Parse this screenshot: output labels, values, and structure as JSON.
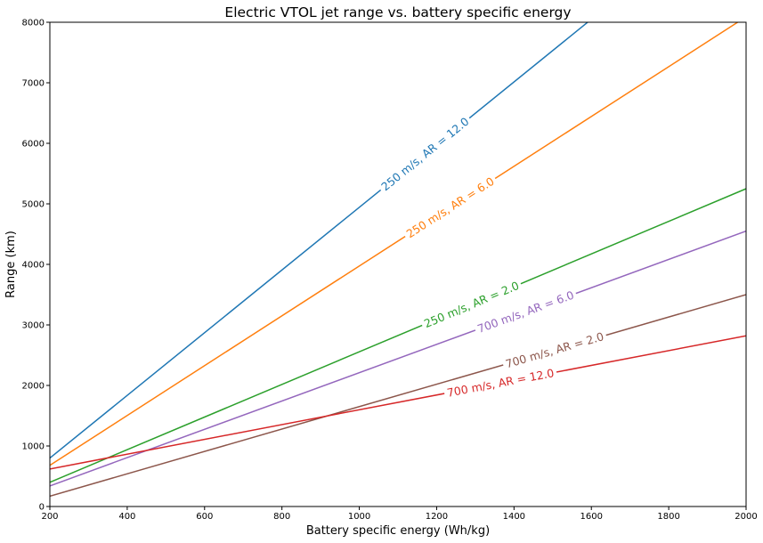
{
  "chart_data": {
    "type": "line",
    "title": "Electric VTOL jet range vs. battery specific energy",
    "xlabel": "Battery specific energy (Wh/kg)",
    "ylabel": "Range (km)",
    "xlim": [
      200,
      2000
    ],
    "ylim": [
      0,
      8000
    ],
    "xticks": [
      "200",
      "400",
      "600",
      "800",
      "1000",
      "1200",
      "1400",
      "1600",
      "1800",
      "2000"
    ],
    "yticks": [
      "0",
      "1000",
      "2000",
      "3000",
      "4000",
      "5000",
      "6000",
      "7000",
      "8000"
    ],
    "grid": false,
    "legend": "none",
    "series": [
      {
        "name": "250 m/s, AR = 12.0",
        "color": "#1f77b4",
        "x": [
          200,
          1600
        ],
        "y": [
          800,
          8050
        ],
        "label_x": 1170,
        "label_y": 6000
      },
      {
        "name": "250 m/s, AR = 6.0",
        "color": "#ff7f0e",
        "x": [
          200,
          2000
        ],
        "y": [
          680,
          8090
        ],
        "label_x": 1235,
        "label_y": 4950
      },
      {
        "name": "250 m/s, AR = 2.0",
        "color": "#2ca02c",
        "x": [
          200,
          2000
        ],
        "y": [
          400,
          5250
        ],
        "label_x": 1290,
        "label_y": 3380
      },
      {
        "name": "700 m/s, AR = 6.0",
        "color": "#9467bd",
        "x": [
          200,
          2000
        ],
        "y": [
          340,
          4550
        ],
        "label_x": 1430,
        "label_y": 3020
      },
      {
        "name": "700 m/s, AR = 2.0",
        "color": "#8c564b",
        "x": [
          200,
          2000
        ],
        "y": [
          170,
          3500
        ],
        "label_x": 1505,
        "label_y": 2500
      },
      {
        "name": "700 m/s, AR = 12.0",
        "color": "#d62728",
        "x": [
          200,
          2000
        ],
        "y": [
          620,
          2820
        ],
        "label_x": 1365,
        "label_y": 1900
      }
    ]
  }
}
